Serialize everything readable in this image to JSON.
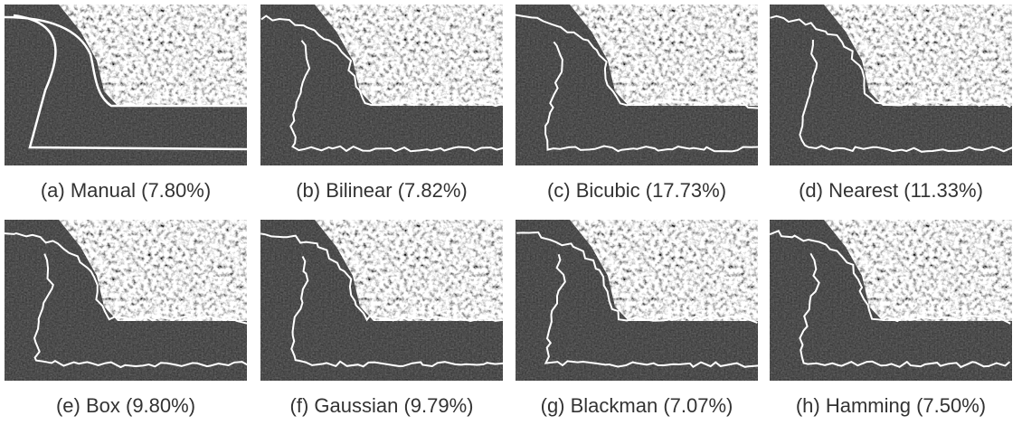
{
  "figure": {
    "panels": [
      {
        "caption": "(a) Manual (7.80%)"
      },
      {
        "caption": "(b) Bilinear (7.82%)"
      },
      {
        "caption": "(c) Bicubic (17.73%)"
      },
      {
        "caption": "(d) Nearest (11.33%)"
      },
      {
        "caption": "(e) Box (9.80%)"
      },
      {
        "caption": "(f) Gaussian (9.79%)"
      },
      {
        "caption": "(g) Blackman (7.07%)"
      },
      {
        "caption": "(h) Hamming (7.50%)"
      }
    ]
  }
}
